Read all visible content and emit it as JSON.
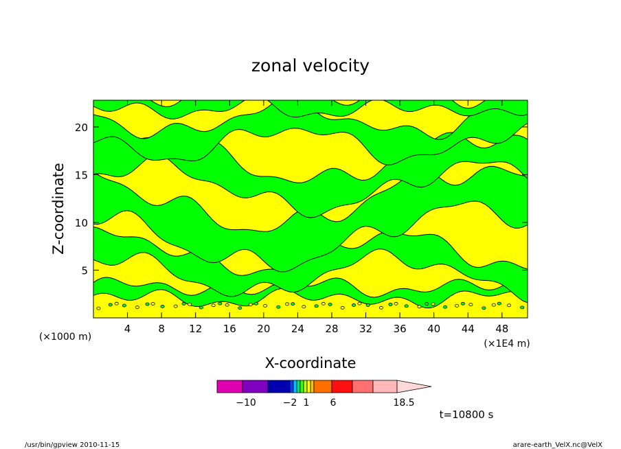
{
  "chart_data": {
    "type": "heatmap",
    "title": "zonal velocity",
    "xlabel": "X-coordinate",
    "ylabel": "Z-coordinate",
    "x_unit_left": "(×1000 m)",
    "x_unit_right": "(×1E4 m)",
    "xlim": [
      0,
      51
    ],
    "ylim": [
      0,
      22.8
    ],
    "x_ticks": [
      4,
      8,
      12,
      16,
      20,
      24,
      28,
      32,
      36,
      40,
      44,
      48
    ],
    "y_ticks": [
      5,
      10,
      15,
      20
    ],
    "contour_colors": {
      "negative": "#00ff00",
      "positive": "#ffff00",
      "line": "#000000"
    },
    "colorbar": {
      "colors": [
        "#e000b0",
        "#8000c0",
        "#0000b0",
        "#0040ff",
        "#00c0ff",
        "#00e080",
        "#40ff00",
        "#c0ff00",
        "#ffff00",
        "#ffc000",
        "#ff7000",
        "#ff1010",
        "#ff7070",
        "#ffb8b8",
        "#ffd8d8"
      ],
      "tick_labels": [
        "−10",
        "−2",
        "1",
        "6",
        "18.5"
      ]
    },
    "time_label": "t=10800 s"
  },
  "footer": {
    "left": "/usr/bin/gpview   2010-11-15",
    "right": "arare-earth_VelX.nc@VelX"
  }
}
